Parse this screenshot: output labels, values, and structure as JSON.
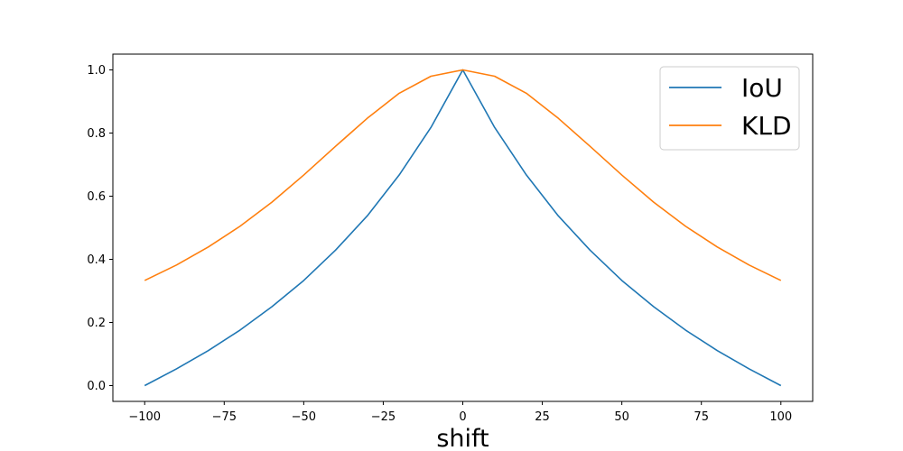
{
  "chart_data": {
    "type": "line",
    "title": "",
    "xlabel": "shift",
    "ylabel": "",
    "xlim": [
      -110,
      110
    ],
    "ylim": [
      -0.05,
      1.05
    ],
    "x_ticks": [
      -100,
      -75,
      -50,
      -25,
      0,
      25,
      50,
      75,
      100
    ],
    "x_tick_labels": [
      "−100",
      "−75",
      "−50",
      "−25",
      "0",
      "25",
      "50",
      "75",
      "100"
    ],
    "y_ticks": [
      0.0,
      0.2,
      0.4,
      0.6,
      0.8,
      1.0
    ],
    "y_tick_labels": [
      "0.0",
      "0.2",
      "0.4",
      "0.6",
      "0.8",
      "1.0"
    ],
    "grid": false,
    "legend_position": "top-right",
    "x": [
      -100,
      -90,
      -80,
      -70,
      -60,
      -50,
      -40,
      -30,
      -20,
      -10,
      0,
      10,
      20,
      30,
      40,
      50,
      60,
      70,
      80,
      90,
      100
    ],
    "series": [
      {
        "name": "IoU",
        "color": "#1f77b4",
        "values": [
          0.0,
          0.053,
          0.111,
          0.176,
          0.25,
          0.333,
          0.429,
          0.538,
          0.667,
          0.818,
          1.0,
          0.818,
          0.667,
          0.538,
          0.429,
          0.333,
          0.25,
          0.176,
          0.111,
          0.053,
          0.0
        ]
      },
      {
        "name": "KLD",
        "color": "#ff7f0e",
        "values": [
          0.333,
          0.382,
          0.439,
          0.505,
          0.581,
          0.667,
          0.758,
          0.847,
          0.926,
          0.98,
          1.0,
          0.98,
          0.926,
          0.847,
          0.758,
          0.667,
          0.581,
          0.505,
          0.439,
          0.382,
          0.333
        ]
      }
    ]
  }
}
